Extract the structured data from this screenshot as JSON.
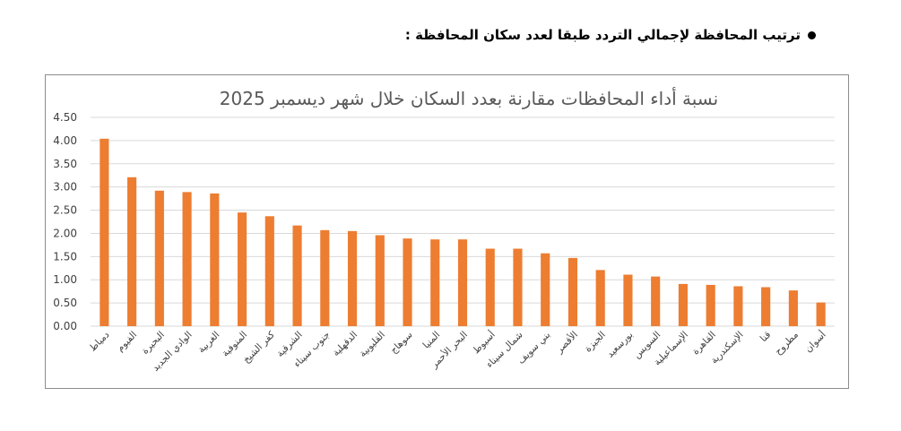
{
  "heading": {
    "text": "ترتيب المحافظة لإجمالي التردد طبقا لعدد سكان المحافظة :"
  },
  "chart_data": {
    "type": "bar",
    "title": "نسبة أداء المحافظات مقارنة بعدد السكان خلال شهر ديسمبر 2025",
    "xlabel": "",
    "ylabel": "",
    "ylim": [
      0,
      4.5
    ],
    "y_ticks": [
      "0.00",
      "0.50",
      "1.00",
      "1.50",
      "2.00",
      "2.50",
      "3.00",
      "3.50",
      "4.00",
      "4.50"
    ],
    "grid": true,
    "legend": "none",
    "bar_color": "#ed7d31",
    "categories": [
      "دمياط",
      "الفيوم",
      "البحيرة",
      "الوادي الجديد",
      "الغربية",
      "المنوفية",
      "كفر الشيخ",
      "الشرقية",
      "جنوب سيناء",
      "الدقهلية",
      "القليوبية",
      "سوهاج",
      "المنيا",
      "البحر الأحمر",
      "أسيوط",
      "شمال سيناء",
      "بني سويف",
      "الأقصر",
      "الجيزة",
      "بورسعيد",
      "السويس",
      "الإسماعيلية",
      "القاهرة",
      "الإسكندرية",
      "قنا",
      "مطروح",
      "أسوان"
    ],
    "values": [
      4.04,
      3.21,
      2.92,
      2.89,
      2.86,
      2.45,
      2.37,
      2.17,
      2.07,
      2.05,
      1.96,
      1.89,
      1.87,
      1.87,
      1.67,
      1.67,
      1.57,
      1.47,
      1.21,
      1.11,
      1.07,
      0.91,
      0.89,
      0.86,
      0.84,
      0.77,
      0.51
    ]
  }
}
